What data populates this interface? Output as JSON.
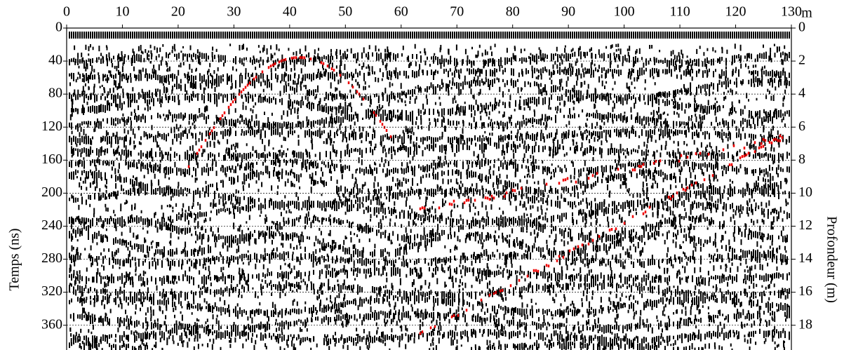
{
  "chart_data": {
    "type": "radargram",
    "x_label": "m",
    "y_label": "Temps (ns)",
    "y2_label": "Profondeur (m)",
    "xlim": [
      0,
      130
    ],
    "xticks": [
      0,
      10,
      20,
      30,
      40,
      50,
      60,
      70,
      80,
      90,
      100,
      110,
      120,
      130
    ],
    "ylim": [
      0,
      390
    ],
    "yticks": [
      0,
      40,
      80,
      120,
      160,
      200,
      240,
      280,
      320,
      360
    ],
    "y2lim": [
      0,
      19.5
    ],
    "y2ticks": [
      0,
      2,
      4,
      6,
      8,
      10,
      12,
      14,
      16,
      18
    ],
    "grid": true
  }
}
